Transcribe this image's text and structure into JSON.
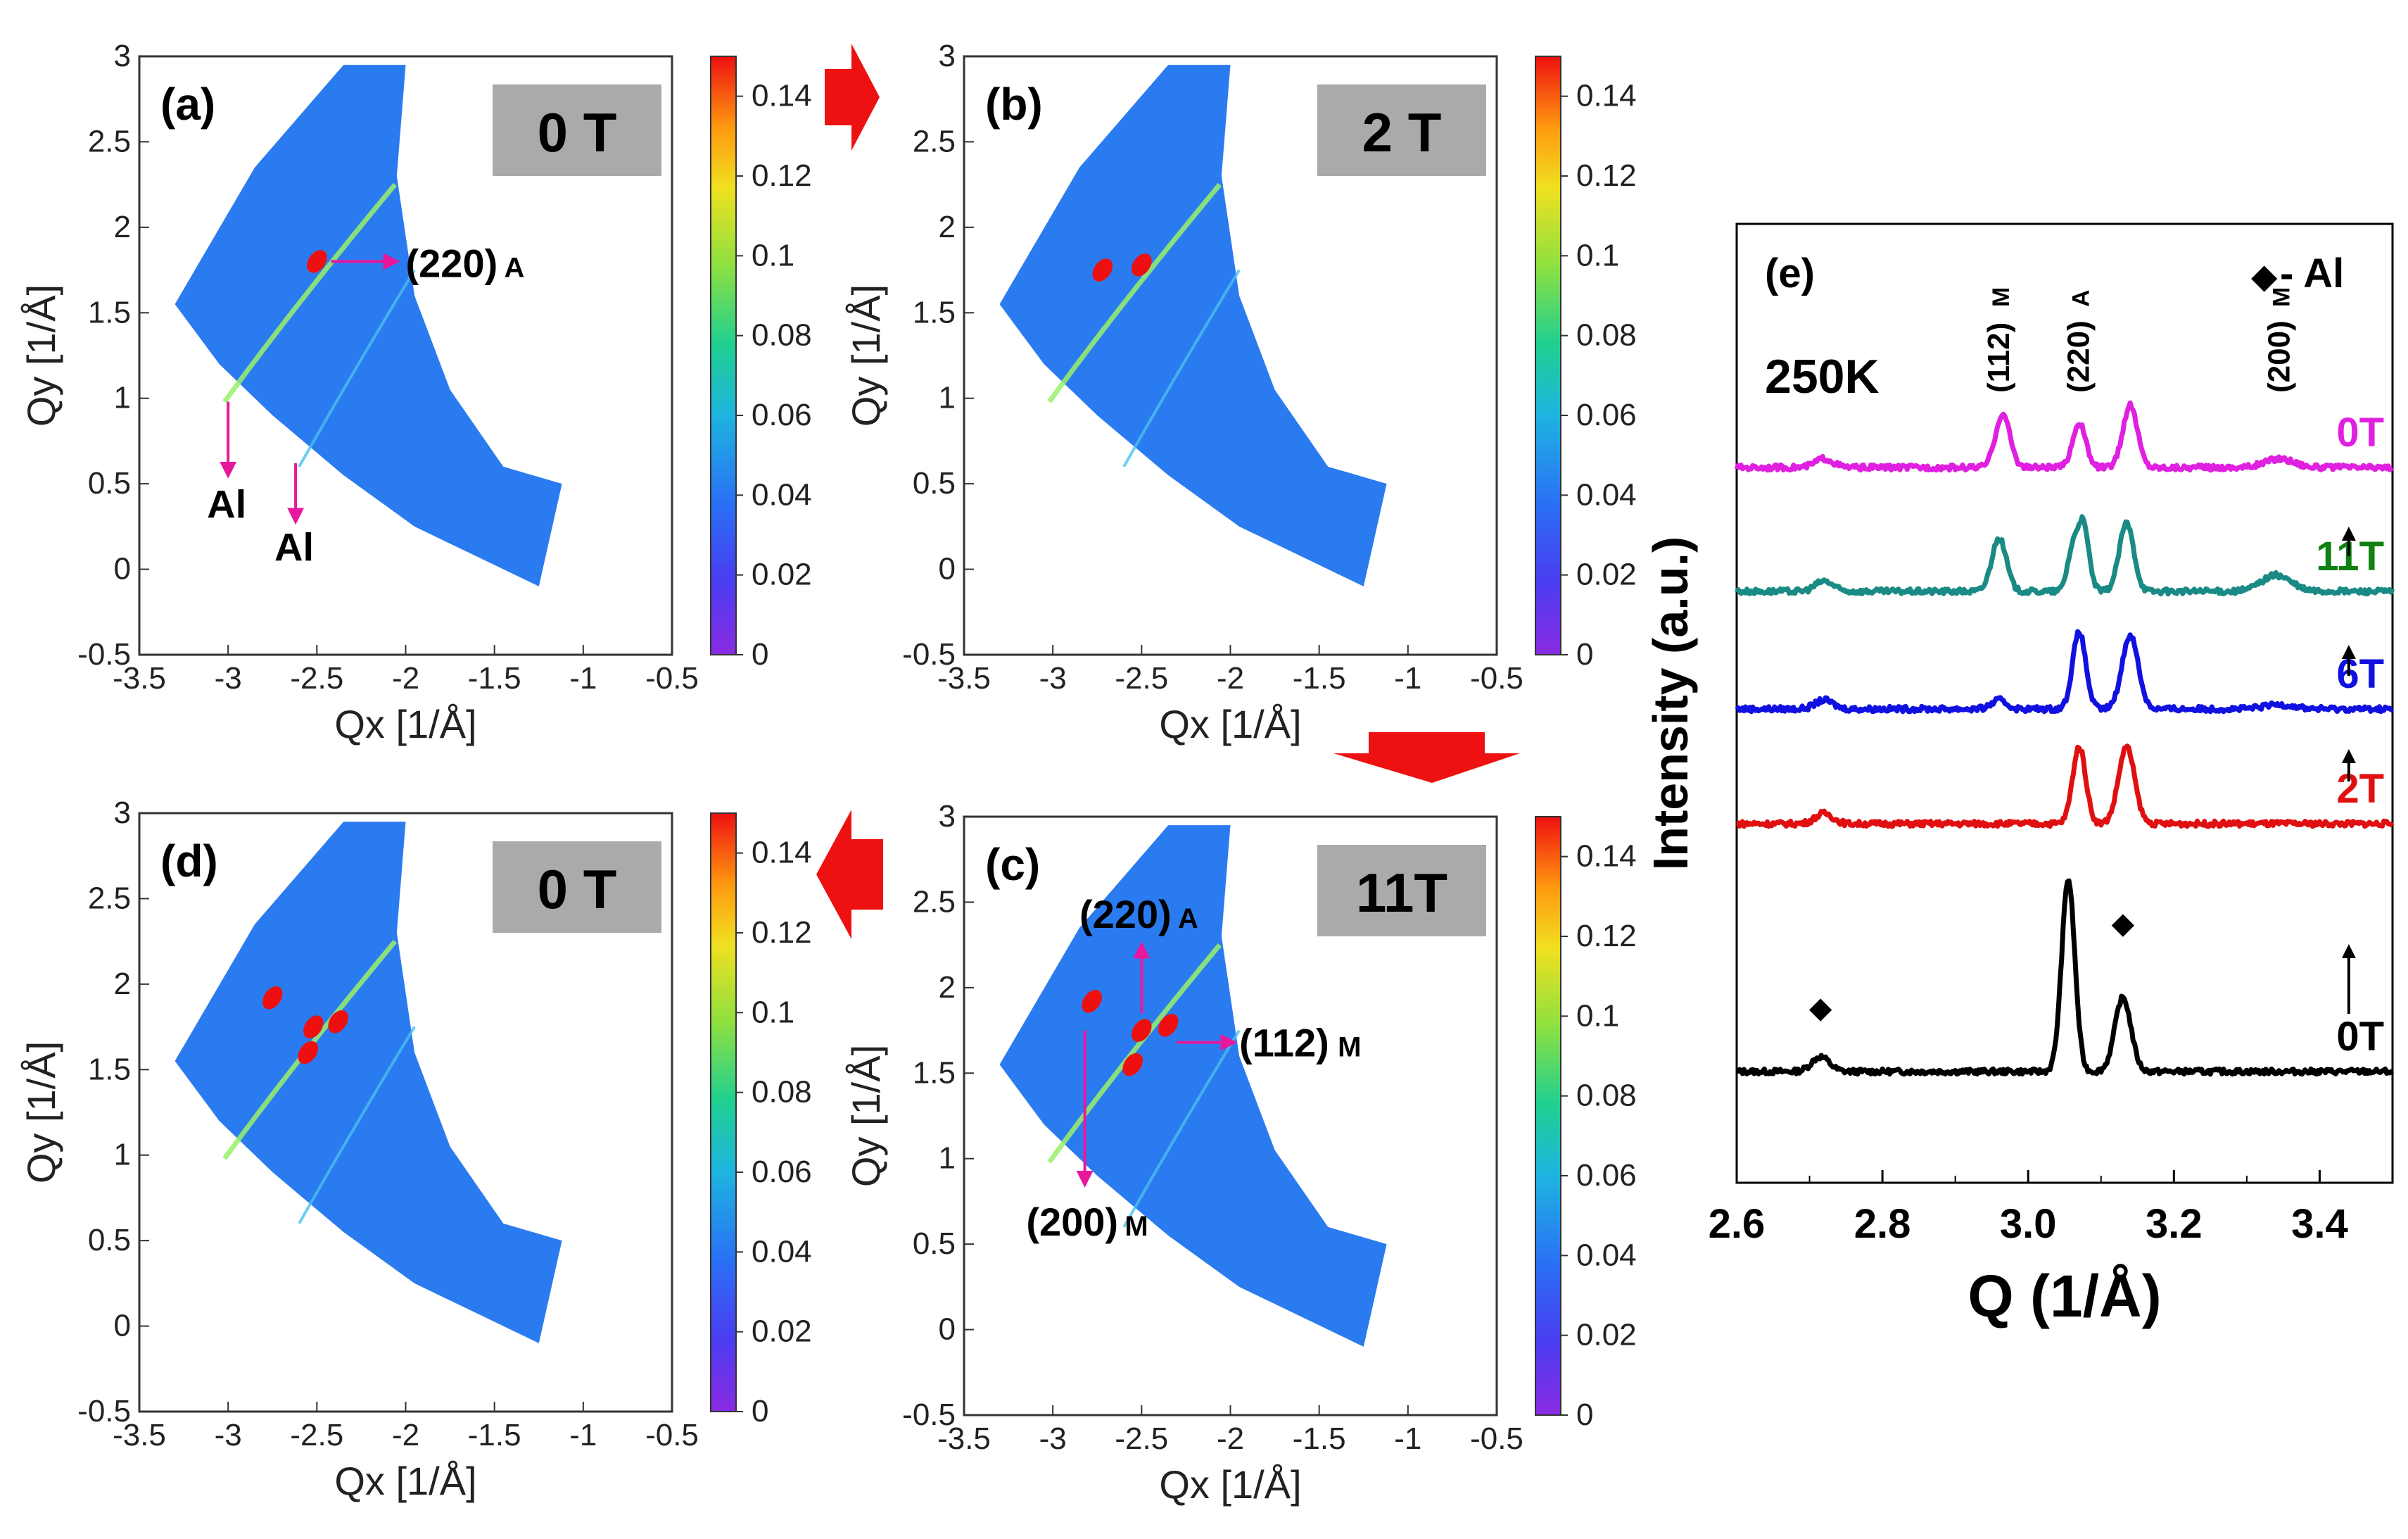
{
  "colors": {
    "magenta": "#e020e0",
    "teal": "#1a8a84",
    "blue": "#1010e0",
    "red": "#e01010",
    "black": "#000000",
    "green": "#108010",
    "arrow_red": "#ee1111",
    "pink_arrow": "#e8189c",
    "map_bg": "#2b7bf0",
    "field_box": "#aaaaaa"
  },
  "maps": {
    "xaxis": {
      "label": "Qx [1/Å]",
      "ticks": [
        "-3.5",
        "-3",
        "-2.5",
        "-2",
        "-1.5",
        "-1",
        "-0.5"
      ],
      "range": [
        -3.5,
        -0.5
      ]
    },
    "yaxis": {
      "label": "Qy [1/Å]",
      "ticks": [
        "-0.5",
        "0",
        "0.5",
        "1",
        "1.5",
        "2",
        "2.5",
        "3"
      ],
      "range": [
        -0.5,
        3
      ]
    },
    "colorbar": {
      "ticks": [
        "0",
        "0.02",
        "0.04",
        "0.06",
        "0.08",
        "0.1",
        "0.12",
        "0.14"
      ],
      "range": [
        0,
        0.15
      ]
    },
    "panels": [
      {
        "id": "a",
        "label": "(a)",
        "field": "0 T"
      },
      {
        "id": "b",
        "label": "(b)",
        "field": "2 T"
      },
      {
        "id": "d",
        "label": "(d)",
        "field": "0 T"
      },
      {
        "id": "c",
        "label": "(c)",
        "field": "11T"
      }
    ],
    "annotations_a": {
      "peak_220A": "(220)",
      "peak_220A_sub": "A",
      "al1": "Al",
      "al2": "Al"
    },
    "annotations_c": {
      "peak_220A": "(220)",
      "peak_220A_sub": "A",
      "peak_112M": "(112)",
      "peak_112M_sub": "M",
      "peak_200M": "(200)",
      "peak_200M_sub": "M"
    }
  },
  "chart_data": [
    {
      "type": "heatmap",
      "title": "(a) 0 T",
      "xlabel": "Qx [1/Å]",
      "ylabel": "Qy [1/Å]",
      "xlim": [
        -3.5,
        -0.5
      ],
      "ylim": [
        -0.5,
        3
      ],
      "colorbar_range": [
        0,
        0.15
      ],
      "features": [
        {
          "label": "(220)A",
          "qx": -2.5,
          "qy": 1.8
        },
        {
          "label": "Al",
          "qx": -3.0,
          "qy": 1.0
        },
        {
          "label": "Al",
          "qx": -2.58,
          "qy": 0.55
        }
      ]
    },
    {
      "type": "heatmap",
      "title": "(b) 2 T",
      "xlabel": "Qx [1/Å]",
      "ylabel": "Qy [1/Å]",
      "xlim": [
        -3.5,
        -0.5
      ],
      "ylim": [
        -0.5,
        3
      ],
      "colorbar_range": [
        0,
        0.15
      ],
      "features": [
        {
          "label": "spot",
          "qx": -2.5,
          "qy": 1.78
        }
      ]
    },
    {
      "type": "heatmap",
      "title": "(c) 11T",
      "xlabel": "Qx [1/Å]",
      "ylabel": "Qy [1/Å]",
      "xlim": [
        -3.5,
        -0.5
      ],
      "ylim": [
        -0.5,
        3
      ],
      "colorbar_range": [
        0,
        0.15
      ],
      "features": [
        {
          "label": "(220)A",
          "qx": -2.5,
          "qy": 1.75
        },
        {
          "label": "(112)M",
          "qx": -2.35,
          "qy": 1.65
        },
        {
          "label": "(200)M",
          "qx": -2.8,
          "qy": 1.9
        }
      ]
    },
    {
      "type": "heatmap",
      "title": "(d) 0 T",
      "xlabel": "Qx [1/Å]",
      "ylabel": "Qy [1/Å]",
      "xlim": [
        -3.5,
        -0.5
      ],
      "ylim": [
        -0.5,
        3
      ],
      "colorbar_range": [
        0,
        0.15
      ],
      "features": [
        {
          "label": "spot",
          "qx": -2.75,
          "qy": 1.92
        },
        {
          "label": "spot",
          "qx": -2.5,
          "qy": 1.75
        }
      ]
    },
    {
      "type": "line",
      "panel_label": "(e)",
      "temperature": "250K",
      "legend_symbol": "◆",
      "legend_text": "- Al",
      "xlabel": "Q (1/Å)",
      "ylabel": "Intensity (a.u.)",
      "xlim": [
        2.6,
        3.5
      ],
      "xticks": [
        "2.6",
        "2.8",
        "3.0",
        "3.2",
        "3.4"
      ],
      "peak_labels": [
        {
          "text": "(112)",
          "sub": "M",
          "q": 2.96
        },
        {
          "text": "(220)",
          "sub": "A",
          "q": 3.07
        },
        {
          "text": "(200)",
          "sub": "M",
          "q": 3.345
        }
      ],
      "al_markers": [
        2.715,
        3.13
      ],
      "series": [
        {
          "name": "0T",
          "order": 0,
          "color": "#000000",
          "label_color": "#000000",
          "peaks": [
            [
              2.715,
              0.5,
              0.012
            ],
            [
              3.055,
              6.5,
              0.009
            ],
            [
              3.13,
              2.5,
              0.011
            ]
          ]
        },
        {
          "name": "2T",
          "order": 1,
          "color": "#e01010",
          "label_color": "#e01010",
          "peaks": [
            [
              2.72,
              0.35,
              0.012
            ],
            [
              3.07,
              2.6,
              0.009
            ],
            [
              3.135,
              2.6,
              0.011
            ]
          ]
        },
        {
          "name": "6T",
          "order": 2,
          "color": "#1010e0",
          "label_color": "#1010e0",
          "peaks": [
            [
              2.72,
              0.3,
              0.012
            ],
            [
              2.96,
              0.3,
              0.01
            ],
            [
              3.07,
              2.6,
              0.009
            ],
            [
              3.14,
              2.5,
              0.011
            ],
            [
              3.345,
              0.15,
              0.02
            ]
          ]
        },
        {
          "name": "11T",
          "order": 3,
          "color": "#1a8a84",
          "label_color": "#108010",
          "peaks": [
            [
              2.72,
              0.35,
              0.012
            ],
            [
              2.96,
              1.8,
              0.01
            ],
            [
              3.06,
              1.2,
              0.007
            ],
            [
              3.075,
              2.3,
              0.008
            ],
            [
              3.135,
              2.3,
              0.01
            ],
            [
              3.34,
              0.55,
              0.02
            ]
          ]
        },
        {
          "name": "0T",
          "order": 4,
          "color": "#e020e0",
          "label_color": "#e020e0",
          "peaks": [
            [
              2.72,
              0.3,
              0.012
            ],
            [
              2.965,
              1.8,
              0.01
            ],
            [
              3.07,
              1.5,
              0.009
            ],
            [
              3.14,
              2.1,
              0.01
            ],
            [
              3.345,
              0.3,
              0.02
            ]
          ]
        }
      ]
    }
  ]
}
